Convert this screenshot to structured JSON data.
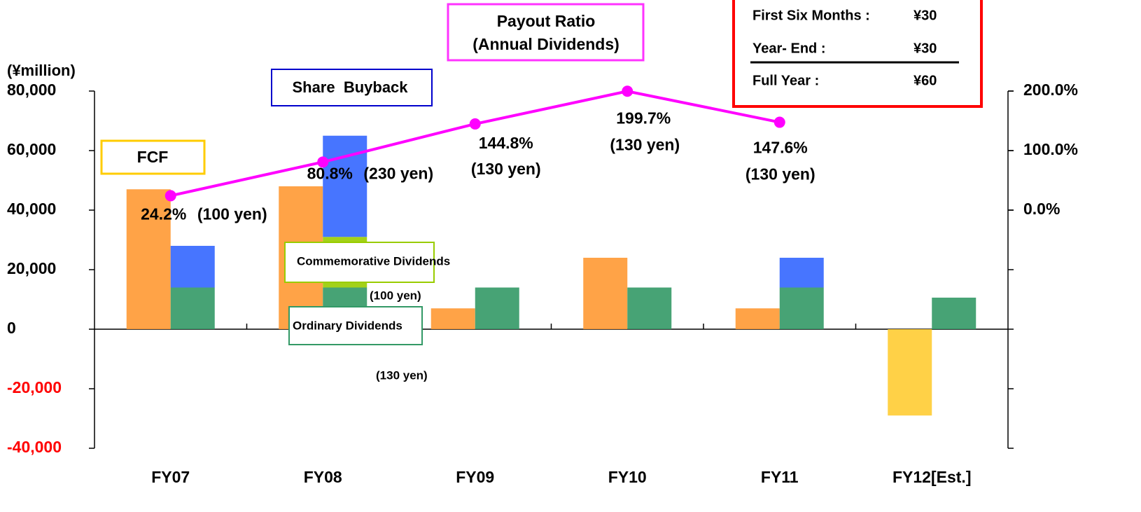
{
  "chart_data": {
    "type": "bar",
    "unit_label": "(¥million)",
    "categories": [
      "FY07",
      "FY08",
      "FY09",
      "FY10",
      "FY11",
      "FY12[Est.]"
    ],
    "series": [
      {
        "name": "FCF",
        "color": "#ff9933",
        "negative_color": "#ffcc33",
        "stack": "a",
        "values": [
          47000,
          48000,
          7000,
          24000,
          7000,
          -29000
        ]
      },
      {
        "name": "Ordinary Dividends",
        "color": "#339966",
        "stack": "b",
        "values": [
          14000,
          14000,
          14000,
          14000,
          14000,
          10600
        ]
      },
      {
        "name": "Commemorative Dividends",
        "color": "#99cc00",
        "stack": "b",
        "values": [
          0,
          17000,
          0,
          0,
          0,
          0
        ]
      },
      {
        "name": "Share  Buyback",
        "color": "#3366ff",
        "stack": "b",
        "values": [
          14000,
          34000,
          0,
          0,
          10000,
          0
        ]
      }
    ],
    "line": {
      "name": "Payout Ratio",
      "subtitle": "(Annual Dividends)",
      "color": "#ff00ff",
      "axis": "y2",
      "values": [
        24.2,
        80.8,
        144.8,
        199.7,
        147.6,
        null
      ],
      "value_labels": [
        "24.2%",
        "80.8%",
        "144.8%",
        "199.7%",
        "147.6%",
        null
      ],
      "dividend_labels": [
        "(100 yen)",
        "(230 yen)",
        "(130 yen)",
        "(130 yen)",
        "(130 yen)",
        null
      ]
    },
    "dividend_notes": [
      "(100 yen)",
      "(130 yen)"
    ],
    "ylim": [
      -40000,
      80000
    ],
    "yticks": [
      {
        "value": -40000,
        "label": "-40,000"
      },
      {
        "value": -20000,
        "label": "-20,000"
      },
      0,
      {
        "value": 20000,
        "label": "20,000"
      },
      {
        "value": 40000,
        "label": "40,000"
      },
      {
        "value": 60000,
        "label": "60,000"
      },
      {
        "value": 80000,
        "label": "80,000"
      }
    ],
    "negative_tick_color": "#ff0000",
    "y2lim": [
      -400,
      200
    ],
    "y2ticks": [
      {
        "value": 0,
        "label": "0.0%"
      },
      {
        "value": 100,
        "label": "100.0%"
      },
      {
        "value": 200,
        "label": "200.0%"
      }
    ],
    "dividend_box": [
      {
        "label": "First Six Months :",
        "amount": "¥30"
      },
      {
        "label": "Year- End :",
        "amount": "¥30"
      },
      {
        "label": "Full Year :",
        "amount": "¥60"
      }
    ]
  }
}
